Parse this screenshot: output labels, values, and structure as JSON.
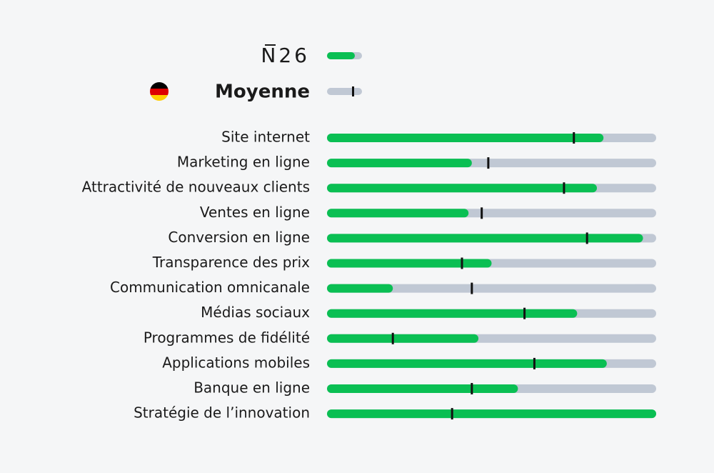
{
  "chart_data": {
    "type": "bar",
    "categories": [
      "Site internet",
      "Marketing en ligne",
      "Attractivité de nouveaux clients",
      "Ventes en ligne",
      "Conversion en ligne",
      "Transparence des prix",
      "Communication omnicanale",
      "Médias sociaux",
      "Programmes de fidélité",
      "Applications mobiles",
      "Banque en ligne",
      "Stratégie de l’innovation"
    ],
    "series": [
      {
        "name": "N26",
        "color": "#0abf53",
        "values": [
          84,
          44,
          82,
          43,
          96,
          50,
          20,
          76,
          46,
          85,
          58,
          100
        ]
      },
      {
        "name": "Moyenne",
        "color": "#111111",
        "values": [
          75,
          49,
          72,
          47,
          79,
          41,
          44,
          60,
          20,
          63,
          44,
          38
        ]
      }
    ],
    "track_color": "#c0c8d4",
    "xlim": [
      0,
      100
    ]
  }
}
